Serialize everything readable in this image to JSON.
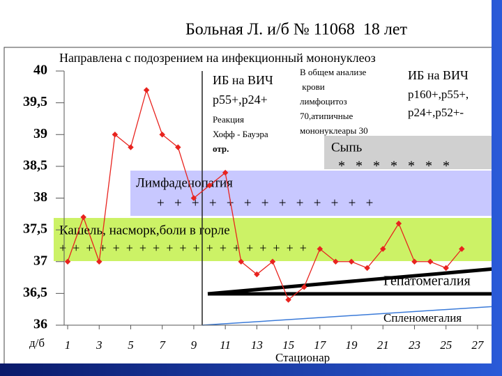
{
  "chart_data": {
    "type": "line",
    "title": "Больная Л. и/б № 11068  18 лет",
    "subtitle": "Направлена с подозрением на инфекционный мононуклеоз",
    "x_label": "д/б",
    "x": [
      1,
      2,
      3,
      4,
      5,
      6,
      7,
      8,
      9,
      10,
      11,
      12,
      13,
      14,
      15,
      16,
      17,
      18,
      19,
      20,
      21,
      22,
      23,
      24,
      25,
      26
    ],
    "series": [
      {
        "color": "#e8231e",
        "values": [
          37.0,
          37.7,
          37.0,
          39.0,
          38.8,
          39.7,
          39.0,
          38.8,
          38.0,
          38.2,
          38.4,
          37.0,
          36.8,
          37.0,
          36.4,
          36.6,
          37.2,
          37.0,
          37.0,
          36.9,
          37.2,
          37.6,
          37.0,
          37.0,
          36.9,
          37.2
        ]
      }
    ],
    "xlim": [
      0.6,
      27.8
    ],
    "xticks": [
      1,
      3,
      5,
      7,
      9,
      11,
      13,
      15,
      17,
      19,
      21,
      23,
      25,
      27
    ],
    "ylim": [
      36,
      40
    ],
    "yticks": [
      36,
      {
        "value": 36.5,
        "label": "36,5"
      },
      37,
      {
        "value": 37.5,
        "label": "37,5"
      },
      38,
      {
        "value": 38.5,
        "label": "38,5"
      },
      39,
      {
        "value": 39.5,
        "label": "39,5"
      },
      40
    ],
    "bands": [
      {
        "label": "Кашель, насморк,боли в горле",
        "marks": "+  +  +  +  +  +  +  +  +  +  +  +  +  +  +  +  +  +  +"
      },
      {
        "label": "Лимфаденопатия",
        "marks": "+   +   +   +   +   +   +   +   +   +   +   +   +"
      },
      {
        "label": "Сыпь",
        "marks": "*   *   *   *   *   *   *"
      }
    ],
    "annotations": [
      {
        "lines": [
          "ИБ на ВИЧ",
          "р55+,р24+"
        ]
      },
      {
        "lines": [
          "Реакция",
          "Хофф - Бауэра",
          "отр."
        ]
      },
      {
        "lines": [
          "В общем анализе",
          " крови",
          "лимфоцитоз",
          "70,атипичные",
          "мононуклеары 30"
        ]
      },
      {
        "lines": [
          "ИБ на ВИЧ",
          "р160+,р55+,",
          "р24+,р52+-"
        ]
      },
      {
        "lines": [
          "Гепатомегалия"
        ]
      },
      {
        "lines": [
          "Спленомегалия"
        ]
      },
      {
        "lines": [
          "Стационар"
        ]
      }
    ]
  }
}
